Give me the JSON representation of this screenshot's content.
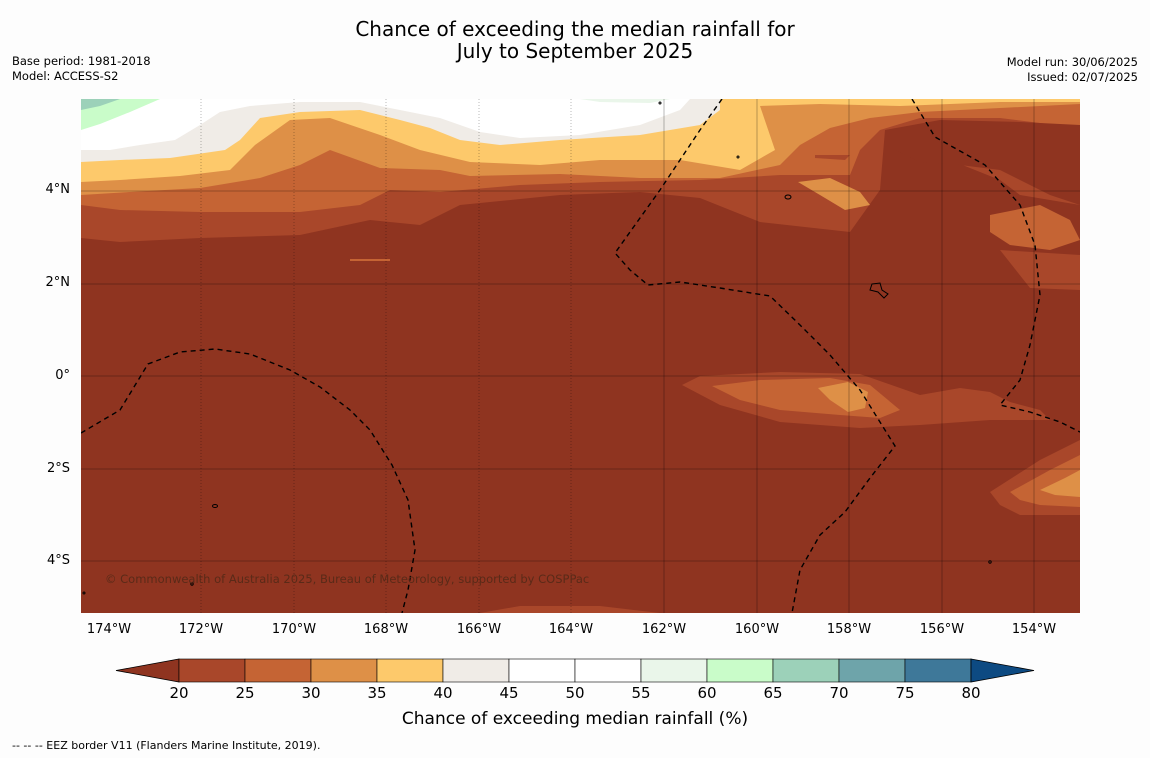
{
  "title": {
    "line1": "Chance of exceeding the median rainfall for",
    "line2": "July to September 2025"
  },
  "meta_left": {
    "base_period": "Base period: 1981-2018",
    "model": "Model: ACCESS-S2"
  },
  "meta_right": {
    "model_run": "Model run: 30/06/2025",
    "issued": "Issued: 02/07/2025"
  },
  "map": {
    "lat_labels": [
      "4°N",
      "2°N",
      "0°",
      "2°S",
      "4°S"
    ],
    "lon_labels": [
      "174°W",
      "172°W",
      "170°W",
      "168°W",
      "166°W",
      "164°W",
      "162°W",
      "160°W",
      "158°W",
      "156°W",
      "154°W"
    ],
    "copyright": "© Commonwealth of Australia 2025, Bureau of Meteorology, supported by COSPPac"
  },
  "colorbar": {
    "ticks": [
      "20",
      "25",
      "30",
      "35",
      "40",
      "45",
      "50",
      "55",
      "60",
      "65",
      "70",
      "75",
      "80"
    ],
    "colors": [
      "#8f3420",
      "#a9472a",
      "#c56434",
      "#de9047",
      "#fdc96b",
      "#f0ece7",
      "#ffffff",
      "#ffffff",
      "#eaf6ea",
      "#c9fcc9",
      "#9cd1b9",
      "#6ea4aa",
      "#3e7899",
      "#0d4a82"
    ],
    "label": "Chance of exceeding median rainfall (%)"
  },
  "footnote": "-- -- -- EEZ border V11 (Flanders Marine Institute, 2019)."
}
